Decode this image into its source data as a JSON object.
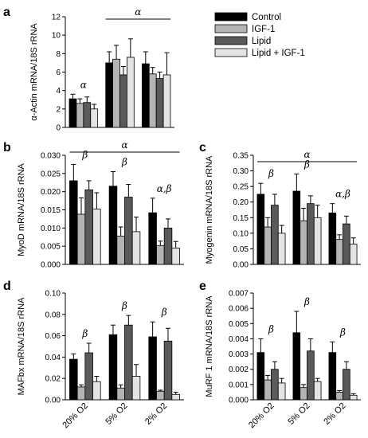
{
  "colors": {
    "control": "#000000",
    "igf1": "#b4b4b4",
    "lipid": "#5a5a5a",
    "lipid_igf1": "#e4e4e4",
    "edge": "#000000"
  },
  "legend": {
    "entries": [
      "Control",
      "IGF-1",
      "Lipid",
      "Lipid + IGF-1"
    ],
    "placement": "top-right"
  },
  "chart_data": [
    {
      "panel": "a",
      "type": "bar",
      "categories": [
        "20% O2",
        "5% O2",
        "2% O2"
      ],
      "ylabel": "α-Actin mRNA/18S rRNA",
      "ylim": [
        0,
        12
      ],
      "yticks": [
        "0",
        "2",
        "4",
        "6",
        "8",
        "10",
        "12"
      ],
      "series": [
        {
          "name": "Control",
          "values": [
            3.1,
            7.0,
            6.9
          ],
          "errors": [
            0.5,
            1.2,
            1.3
          ]
        },
        {
          "name": "IGF-1",
          "values": [
            2.6,
            7.4,
            5.8
          ],
          "errors": [
            0.5,
            1.5,
            0.7
          ]
        },
        {
          "name": "Lipid",
          "values": [
            2.7,
            5.7,
            5.3
          ],
          "errors": [
            0.6,
            0.9,
            0.7
          ]
        },
        {
          "name": "Lipid + IGF-1",
          "values": [
            2.0,
            7.6,
            5.7
          ],
          "errors": [
            0.5,
            2.0,
            2.4
          ]
        }
      ],
      "annotations": [
        {
          "text": "α",
          "over": "20% O2"
        },
        {
          "text": "α",
          "over": "5% O2 – 2% O2",
          "bracket": true
        }
      ]
    },
    {
      "panel": "b",
      "type": "bar",
      "categories": [
        "20% O2",
        "5% O2",
        "2% O2"
      ],
      "ylabel": "MyoD mRNA/18S rRNA",
      "ylim": [
        0,
        0.03
      ],
      "yticks": [
        "0.000",
        "0.005",
        "0.010",
        "0.015",
        "0.020",
        "0.025",
        "0.030"
      ],
      "series": [
        {
          "name": "Control",
          "values": [
            0.023,
            0.0215,
            0.0142
          ],
          "errors": [
            0.0045,
            0.004,
            0.004
          ]
        },
        {
          "name": "IGF-1",
          "values": [
            0.0138,
            0.0078,
            0.0052
          ],
          "errors": [
            0.0045,
            0.0025,
            0.0012
          ]
        },
        {
          "name": "Lipid",
          "values": [
            0.0205,
            0.0185,
            0.01
          ],
          "errors": [
            0.0025,
            0.0035,
            0.0025
          ]
        },
        {
          "name": "Lipid + IGF-1",
          "values": [
            0.0152,
            0.009,
            0.0045
          ],
          "errors": [
            0.0045,
            0.004,
            0.0018
          ]
        }
      ],
      "annotations": [
        {
          "text": "α",
          "over": "20% O2 – 2% O2",
          "bracket": true
        },
        {
          "text": "β",
          "over": "20% O2"
        },
        {
          "text": "β",
          "over": "5% O2"
        },
        {
          "text": "α,β",
          "over": "2% O2"
        }
      ]
    },
    {
      "panel": "c",
      "type": "bar",
      "categories": [
        "20% O2",
        "5% O2",
        "2% O2"
      ],
      "ylabel": "Myogenin mRNA/18S rRNA",
      "ylim": [
        0,
        0.35
      ],
      "yticks": [
        "0.00",
        "0.05",
        "0.10",
        "0.15",
        "0.20",
        "0.25",
        "0.30",
        "0.35"
      ],
      "series": [
        {
          "name": "Control",
          "values": [
            0.225,
            0.235,
            0.165
          ],
          "errors": [
            0.035,
            0.055,
            0.03
          ]
        },
        {
          "name": "IGF-1",
          "values": [
            0.12,
            0.14,
            0.08
          ],
          "errors": [
            0.03,
            0.04,
            0.015
          ]
        },
        {
          "name": "Lipid",
          "values": [
            0.19,
            0.195,
            0.13
          ],
          "errors": [
            0.035,
            0.025,
            0.025
          ]
        },
        {
          "name": "Lipid + IGF-1",
          "values": [
            0.1,
            0.15,
            0.065
          ],
          "errors": [
            0.025,
            0.04,
            0.02
          ]
        }
      ],
      "annotations": [
        {
          "text": "α",
          "over": "20% O2 – 2% O2",
          "bracket": true
        },
        {
          "text": "β",
          "over": "20% O2"
        },
        {
          "text": "β",
          "over": "5% O2"
        },
        {
          "text": "α,β",
          "over": "2% O2"
        }
      ]
    },
    {
      "panel": "d",
      "type": "bar",
      "categories": [
        "20% O2",
        "5% O2",
        "2% O2"
      ],
      "ylabel": "MAFbx mRNA/18S rRNA",
      "ylim": [
        0,
        0.1
      ],
      "yticks": [
        "0.00",
        "0.02",
        "0.04",
        "0.06",
        "0.08",
        "0.10"
      ],
      "series": [
        {
          "name": "Control",
          "values": [
            0.038,
            0.061,
            0.059
          ],
          "errors": [
            0.005,
            0.009,
            0.014
          ]
        },
        {
          "name": "IGF-1",
          "values": [
            0.012,
            0.011,
            0.008
          ],
          "errors": [
            0.002,
            0.003,
            0.001
          ]
        },
        {
          "name": "Lipid",
          "values": [
            0.044,
            0.07,
            0.055
          ],
          "errors": [
            0.009,
            0.009,
            0.012
          ]
        },
        {
          "name": "Lipid + IGF-1",
          "values": [
            0.017,
            0.022,
            0.005
          ],
          "errors": [
            0.005,
            0.011,
            0.002
          ]
        }
      ],
      "annotations": [
        {
          "text": "β",
          "over": "20% O2"
        },
        {
          "text": "β",
          "over": "5% O2"
        },
        {
          "text": "β",
          "over": "2% O2"
        }
      ]
    },
    {
      "panel": "e",
      "type": "bar",
      "categories": [
        "20% O2",
        "5% O2",
        "2% O2"
      ],
      "ylabel": "MuRF 1 mRNA/18S rRNA",
      "ylim": [
        0,
        0.007
      ],
      "yticks": [
        "0.000",
        "0.001",
        "0.002",
        "0.003",
        "0.004",
        "0.005",
        "0.006",
        "0.007"
      ],
      "series": [
        {
          "name": "Control",
          "values": [
            0.0031,
            0.0044,
            0.0031
          ],
          "errors": [
            0.0009,
            0.0014,
            0.0007
          ]
        },
        {
          "name": "IGF-1",
          "values": [
            0.0013,
            0.0008,
            0.0005
          ],
          "errors": [
            0.0003,
            0.0002,
            0.0001
          ]
        },
        {
          "name": "Lipid",
          "values": [
            0.002,
            0.0032,
            0.002
          ],
          "errors": [
            0.0005,
            0.0008,
            0.0005
          ]
        },
        {
          "name": "Lipid + IGF-1",
          "values": [
            0.0011,
            0.0012,
            0.0003
          ],
          "errors": [
            0.0003,
            0.0002,
            0.0001
          ]
        }
      ],
      "annotations": [
        {
          "text": "β",
          "over": "20% O2"
        },
        {
          "text": "β",
          "over": "5% O2"
        },
        {
          "text": "β",
          "over": "2% O2"
        }
      ]
    }
  ]
}
